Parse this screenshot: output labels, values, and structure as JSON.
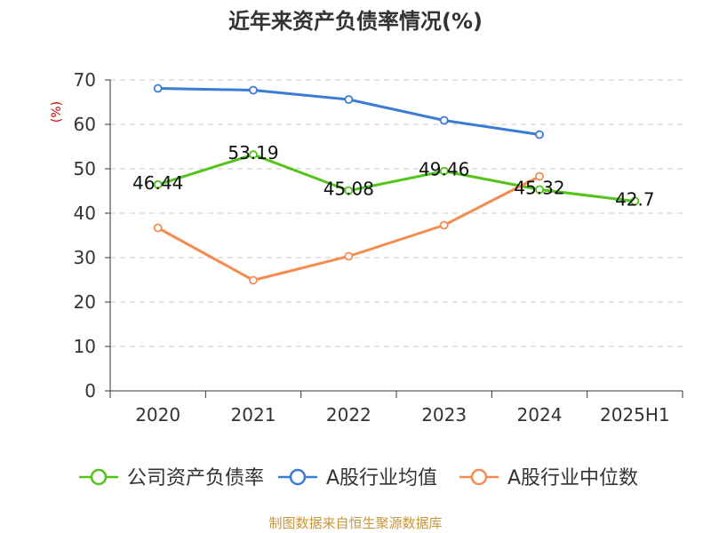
{
  "chart_data": {
    "type": "line",
    "title": "近年来资产负债率情况(%)",
    "ylabel": "(%)",
    "xlabel": "",
    "categories": [
      "2020",
      "2021",
      "2022",
      "2023",
      "2024",
      "2025H1"
    ],
    "ylim": [
      0,
      70
    ],
    "yticks": [
      0,
      10,
      20,
      30,
      40,
      50,
      60,
      70
    ],
    "grid": true,
    "series": [
      {
        "name": "公司资产负债率",
        "color": "#52c41a",
        "values": [
          46.44,
          53.19,
          45.08,
          49.46,
          45.32,
          42.7
        ],
        "labels": [
          "46.44",
          "53.19",
          "45.08",
          "49.46",
          "45.32",
          "42.7"
        ]
      },
      {
        "name": "A股行业均值",
        "color": "#3a7bd5",
        "values": [
          68.1,
          67.7,
          65.6,
          60.9,
          57.7,
          null
        ]
      },
      {
        "name": "A股行业中位数",
        "color": "#f48c52",
        "values": [
          36.7,
          24.9,
          30.3,
          37.3,
          48.3,
          null
        ]
      }
    ],
    "legend_position": "bottom",
    "source": "制图数据来自恒生聚源数据库"
  }
}
